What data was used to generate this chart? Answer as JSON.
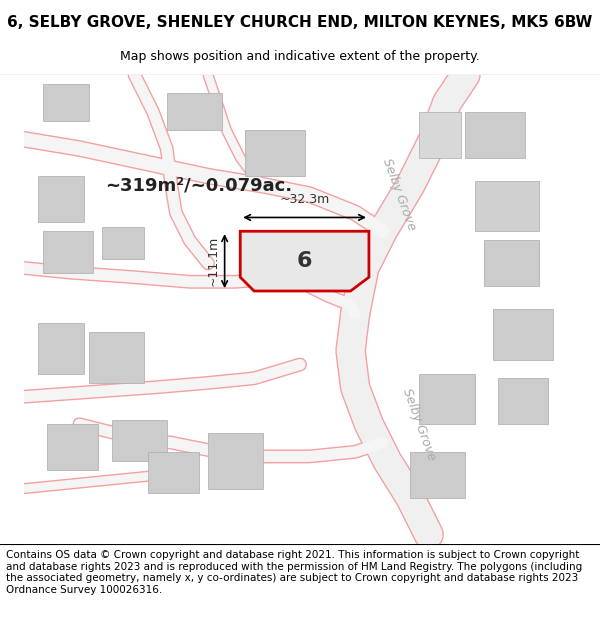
{
  "title": "6, SELBY GROVE, SHENLEY CHURCH END, MILTON KEYNES, MK5 6BW",
  "subtitle": "Map shows position and indicative extent of the property.",
  "footer": "Contains OS data © Crown copyright and database right 2021. This information is subject to Crown copyright and database rights 2023 and is reproduced with the permission of HM Land Registry. The polygons (including the associated geometry, namely x, y co-ordinates) are subject to Crown copyright and database rights 2023 Ordnance Survey 100026316.",
  "area_label": "~319m²/~0.079ac.",
  "number_label": "6",
  "width_label": "~32.3m",
  "height_label": "~11.1m",
  "bg_color": "#ffffff",
  "map_bg": "#ffffff",
  "road_color": "#f5a0a0",
  "building_color": "#cccccc",
  "building_edge": "#aaaaaa",
  "property_fill": "#e8e8e8",
  "property_edge": "#cc0000",
  "road_label_color": "#aaaaaa",
  "title_fontsize": 11,
  "subtitle_fontsize": 9,
  "footer_fontsize": 7.5
}
